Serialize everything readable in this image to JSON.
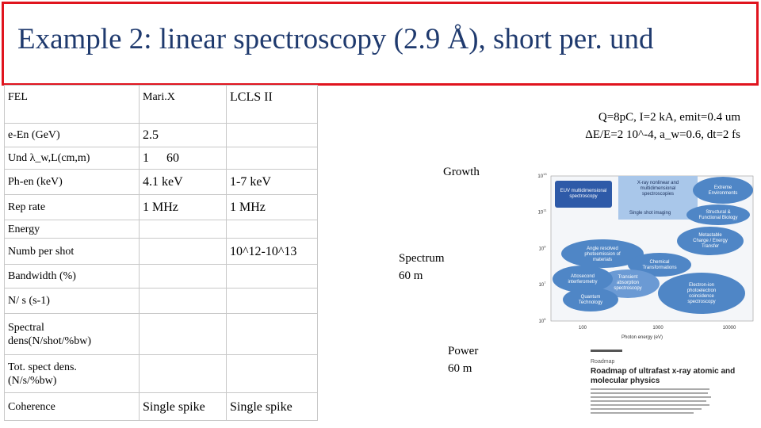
{
  "title": "Example 2:  linear spectroscopy (2.9 Å), short per. und",
  "table": {
    "rows": [
      [
        "FEL",
        "Mari.X",
        "LCLS II"
      ],
      [
        "e-En (GeV)",
        "2.5",
        null
      ],
      [
        "Und λ_w,L(cm,m)",
        [
          "1",
          "60"
        ],
        null
      ],
      [
        "Ph-en (keV)",
        "4.1 keV",
        "1-7 keV"
      ],
      [
        "Rep rate",
        "1 MHz",
        "1 MHz"
      ],
      [
        "Energy",
        null,
        null
      ],
      [
        "Numb per shot",
        null,
        "10^12-10^13"
      ],
      [
        "Bandwidth (%)",
        null,
        null
      ],
      [
        "N/ s (s-1)",
        null,
        null
      ],
      [
        [
          "Spectral",
          "dens(N/shot/%bw)"
        ],
        null,
        null
      ],
      [
        [
          "Tot. spect dens.",
          "(N/s/%bw)"
        ],
        null,
        null
      ],
      [
        "Coherence",
        "Single spike",
        "Single spike"
      ]
    ]
  },
  "notes": {
    "params": [
      "Q=8pC, I=2 kA, emit=0.4 um",
      "ΔE/E=2 10^-4, a_w=0.6, dt=2 fs"
    ],
    "growth": "Growth",
    "spectrum": [
      "Spectrum",
      "60 m"
    ],
    "power": [
      "Power",
      "60 m"
    ]
  },
  "figure": {
    "y_ticks": [
      [
        "10",
        "13"
      ],
      [
        "10",
        "11"
      ],
      [
        "10",
        "9"
      ],
      [
        "10",
        "7"
      ],
      [
        "10",
        "5"
      ]
    ],
    "x_ticks": [
      "100",
      "1000",
      "10000"
    ],
    "x_label": "Photon energy (eV)",
    "regions": [
      [
        "EUV multidimensional",
        "spectroscopy"
      ],
      [
        "X-ray nonlinear and",
        "multidimensional",
        "spectroscopies"
      ],
      [
        "Extreme",
        "Environments"
      ],
      [
        "Single shot imaging"
      ],
      [
        "Structural &",
        "Functional Biology"
      ],
      [
        "Metastable",
        "Charge / Energy",
        "Transfer"
      ],
      [
        "Angle resolved",
        "photoemission of",
        "materials"
      ],
      [
        "Chemical",
        "Transformations"
      ],
      [
        "Attosecond",
        "interferometry"
      ],
      [
        "Transient",
        "absorption",
        "spectroscopy"
      ],
      [
        "Electron-ion",
        "photoelectron",
        "coincidence",
        "spectroscopy"
      ],
      [
        "Quantum",
        "Technology"
      ]
    ]
  },
  "paper": {
    "kind": "Roadmap",
    "title": [
      "Roadmap of ultrafast x-ray atomic and",
      "molecular physics"
    ]
  }
}
